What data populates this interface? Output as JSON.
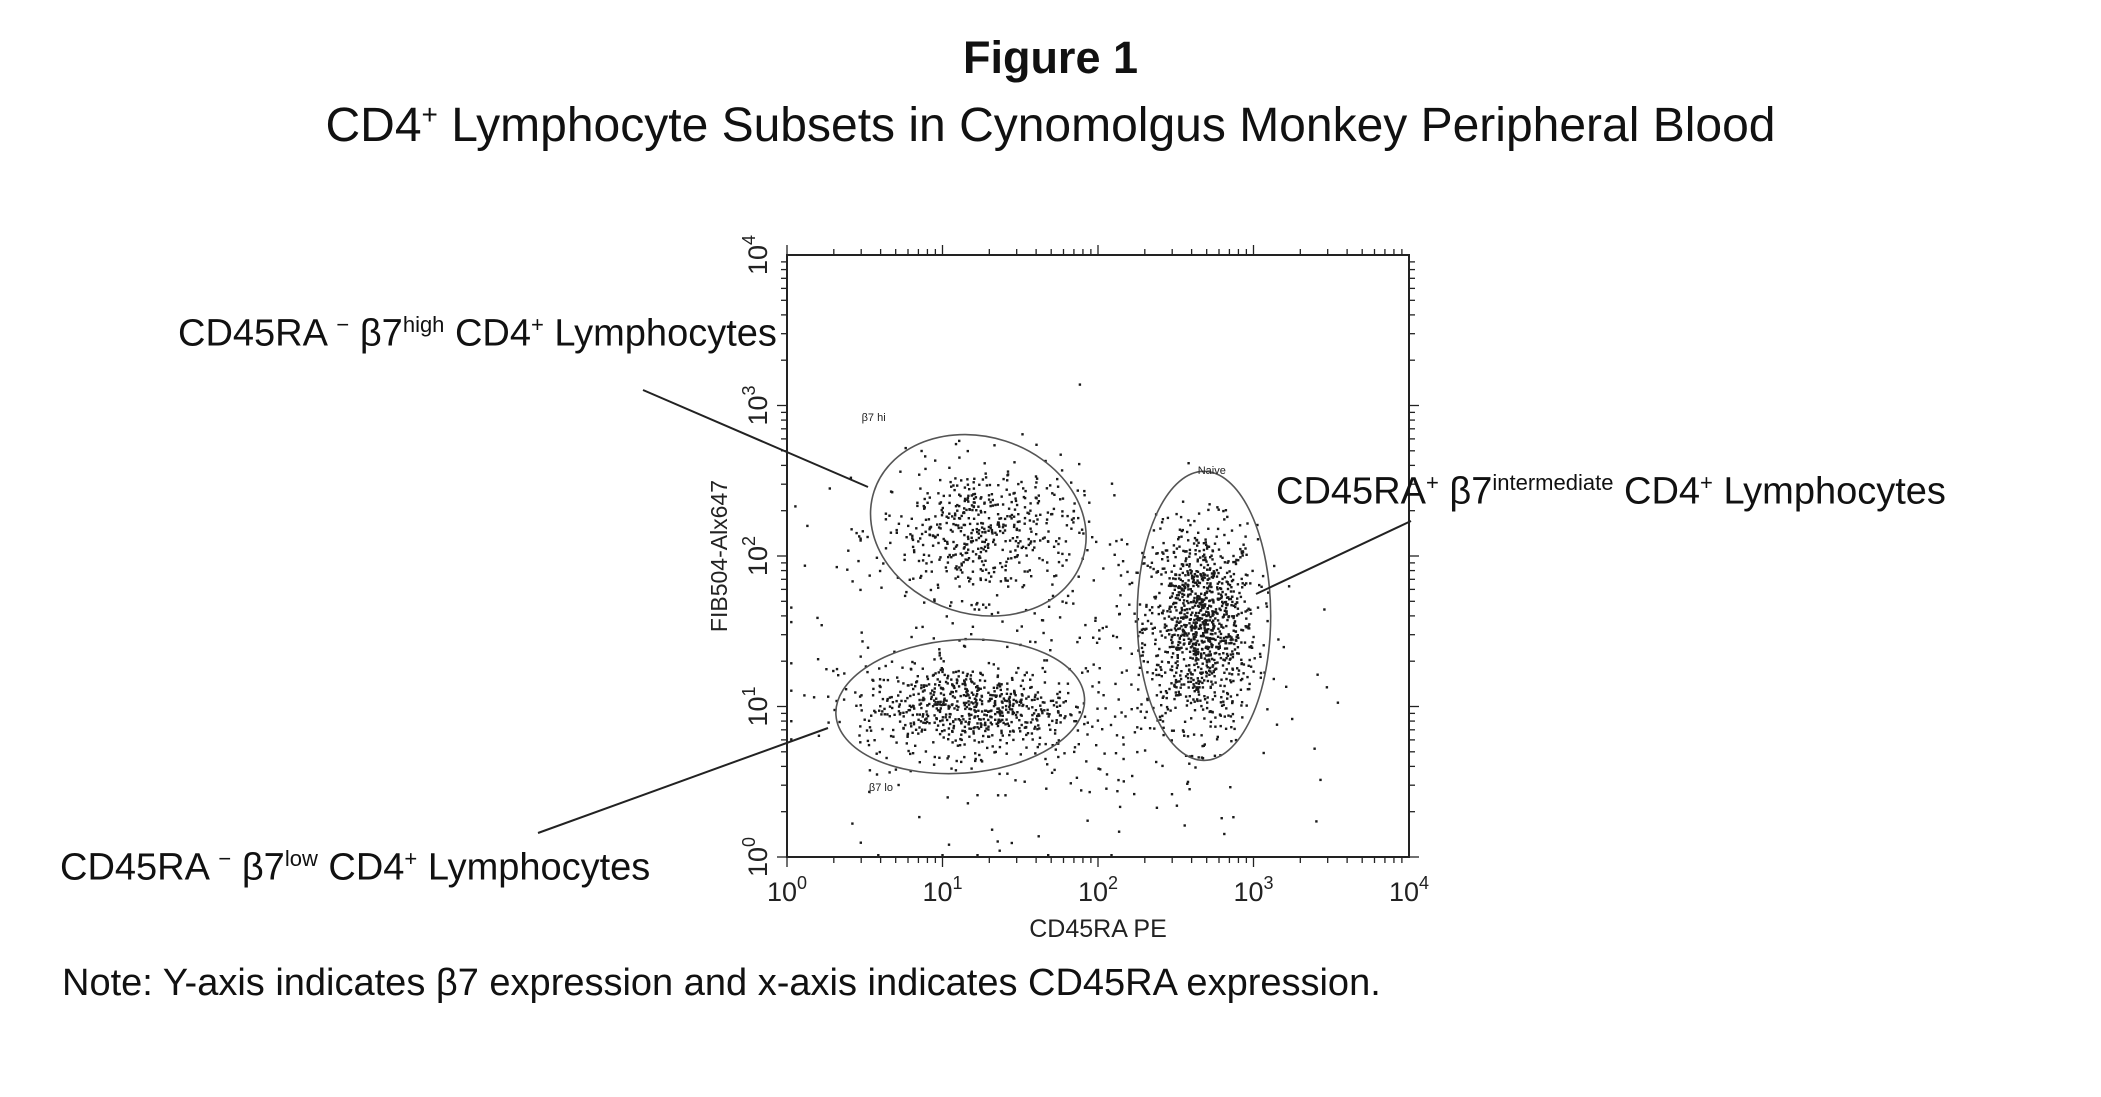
{
  "figure": {
    "title": "Figure 1",
    "subtitle_main": "CD4",
    "subtitle_sup": "+",
    "subtitle_rest": " Lymphocyte Subsets in Cynomolgus Monkey Peripheral Blood"
  },
  "callouts": {
    "high": {
      "prefix": "CD45RA ",
      "sup1": "−",
      "mid": " β7",
      "sup2": "high",
      "suffix": " CD4",
      "sup3": "+",
      "tail": " Lymphocytes"
    },
    "intermediate": {
      "prefix": "CD45RA",
      "sup1": "+",
      "mid": " β7",
      "sup2": "intermediate",
      "suffix": " CD4",
      "sup3": "+",
      "tail": " Lymphocytes"
    },
    "low": {
      "prefix": "CD45RA ",
      "sup1": "−",
      "mid": " β7",
      "sup2": "low",
      "suffix": " CD4",
      "sup3": "+",
      "tail": " Lymphocytes"
    }
  },
  "note": "Note:  Y-axis indicates β7 expression and x-axis indicates CD45RA expression.",
  "chart_data": {
    "type": "scatter",
    "xlabel": "CD45RA PE",
    "ylabel": "FIB504-Alx647",
    "x_scale": "log",
    "y_scale": "log",
    "xlim": [
      1,
      10000
    ],
    "ylim": [
      1,
      10000
    ],
    "x_ticks": [
      {
        "base": "10",
        "exp": "0"
      },
      {
        "base": "10",
        "exp": "1"
      },
      {
        "base": "10",
        "exp": "2"
      },
      {
        "base": "10",
        "exp": "3"
      },
      {
        "base": "10",
        "exp": "4"
      }
    ],
    "y_ticks": [
      {
        "base": "10",
        "exp": "0"
      },
      {
        "base": "10",
        "exp": "1"
      },
      {
        "base": "10",
        "exp": "2"
      },
      {
        "base": "10",
        "exp": "3"
      },
      {
        "base": "10",
        "exp": "4"
      }
    ],
    "gates": [
      {
        "name": "β7 hi",
        "center": [
          17,
          160
        ],
        "x_range": [
          3.5,
          90
        ],
        "y_range": [
          40,
          600
        ]
      },
      {
        "name": "Naive",
        "center": [
          480,
          40
        ],
        "x_range": [
          180,
          1300
        ],
        "y_range": [
          3,
          250
        ]
      },
      {
        "name": "β7 lo",
        "center": [
          13,
          10
        ],
        "x_range": [
          2.5,
          100
        ],
        "y_range": [
          3.5,
          27
        ]
      }
    ],
    "clusters": [
      {
        "gate": "Naive",
        "center": [
          450,
          35
        ],
        "count": 1100
      },
      {
        "gate": "β7 hi",
        "center": [
          17,
          150
        ],
        "count": 520
      },
      {
        "gate": "β7 lo",
        "center": [
          14,
          10
        ],
        "count": 620
      },
      {
        "gate": "none",
        "center": [
          40,
          15
        ],
        "count": 380
      }
    ],
    "grid": false,
    "legend": "none"
  }
}
